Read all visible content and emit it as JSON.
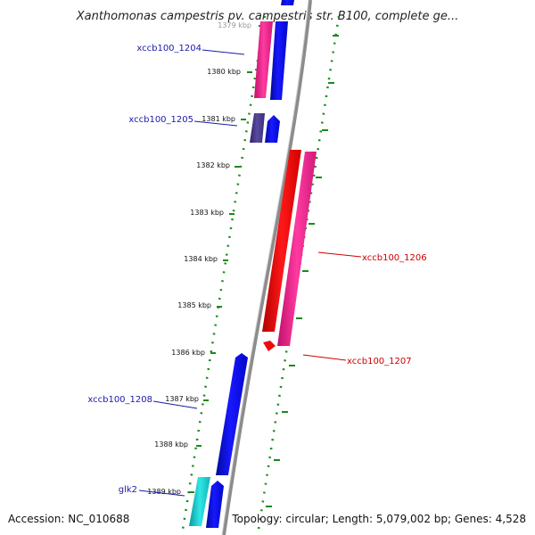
{
  "header": {
    "title": "Xanthomonas campestris pv. campestris str. B100, complete ge..."
  },
  "footer": {
    "accession": "Accession: NC_010688",
    "summary": "Topology: circular; Length: 5,079,002 bp; Genes: 4,528"
  },
  "colors": {
    "tick_dots": "#1a8a1a",
    "backbone": "#888888",
    "forward_gene": "#0a0aee",
    "pink_gene": "#ee2a8a",
    "red_gene": "#ee0a0a",
    "purple_gene": "#4b3c8e",
    "cyan_gene": "#17c4c4",
    "label_blue": "#1a1aaa",
    "label_red": "#cc0000"
  },
  "scale_labels": [
    "1379 kbp",
    "1380 kbp",
    "1381 kbp",
    "1382 kbp",
    "1383 kbp",
    "1384 kbp",
    "1385 kbp",
    "1386 kbp",
    "1387 kbp",
    "1388 kbp",
    "1389 kbp"
  ],
  "gene_labels": [
    {
      "text": "xccb100_1204",
      "color": "label_blue"
    },
    {
      "text": "xccb100_1205",
      "color": "label_blue"
    },
    {
      "text": "xccb100_1206",
      "color": "label_red"
    },
    {
      "text": "xccb100_1207",
      "color": "label_red"
    },
    {
      "text": "xccb100_1208",
      "color": "label_blue"
    },
    {
      "text": "glk2",
      "color": "label_blue"
    }
  ]
}
